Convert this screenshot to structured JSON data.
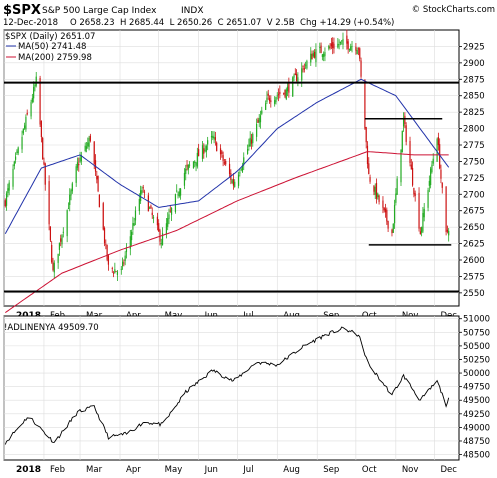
{
  "header": {
    "symbol": "$SPX",
    "name": "S&P 500 Large Cap Index",
    "exchange": "INDX",
    "date": "12-Dec-2018",
    "ohlc_text": "O 2658.23  H 2685.44  L 2650.26  C 2651.07  V 2.5B  Chg +14.29 (+0.54%)",
    "watermark": "© StockCharts.com"
  },
  "legend": {
    "price": "$SPX (Daily) 2651.07",
    "ma50": "MA(50) 2741.48",
    "ma200": "MA(200) 2759.98"
  },
  "lower_label": "!ADLINENYA 49509.70",
  "colors": {
    "up": "#22aa22",
    "down": "#cc1111",
    "ma50": "#2233aa",
    "ma200": "#cc1133",
    "grid": "#dddddd",
    "adline": "#000000"
  },
  "chart_data": [
    {
      "type": "candlestick",
      "ylim": [
        2530,
        2950
      ],
      "yticks": [
        2550,
        2575,
        2600,
        2625,
        2650,
        2675,
        2700,
        2725,
        2750,
        2775,
        2800,
        2825,
        2850,
        2875,
        2900,
        2925
      ],
      "xticks": [
        "2018",
        "Feb",
        "Mar",
        "Apr",
        "May",
        "Jun",
        "Jul",
        "Aug",
        "Sep",
        "Oct",
        "Nov",
        "Dec"
      ],
      "grid": true,
      "close_anchors": [
        [
          "2018-01-02",
          2690
        ],
        [
          "2018-01-26",
          2872
        ],
        [
          "2018-02-08",
          2581
        ],
        [
          "2018-02-27",
          2745
        ],
        [
          "2018-03-09",
          2786
        ],
        [
          "2018-03-23",
          2588
        ],
        [
          "2018-04-02",
          2582
        ],
        [
          "2018-04-18",
          2708
        ],
        [
          "2018-05-03",
          2630
        ],
        [
          "2018-05-21",
          2733
        ],
        [
          "2018-06-12",
          2786
        ],
        [
          "2018-06-28",
          2716
        ],
        [
          "2018-07-25",
          2846
        ],
        [
          "2018-08-08",
          2857
        ],
        [
          "2018-08-29",
          2914
        ],
        [
          "2018-09-20",
          2930
        ],
        [
          "2018-10-03",
          2925
        ],
        [
          "2018-10-11",
          2728
        ],
        [
          "2018-10-29",
          2641
        ],
        [
          "2018-11-07",
          2813
        ],
        [
          "2018-11-20",
          2642
        ],
        [
          "2018-12-03",
          2790
        ],
        [
          "2018-12-10",
          2637
        ],
        [
          "2018-12-12",
          2651
        ]
      ],
      "ma50_anchors": [
        [
          "2018-01-02",
          2640
        ],
        [
          "2018-01-30",
          2740
        ],
        [
          "2018-03-01",
          2760
        ],
        [
          "2018-04-01",
          2715
        ],
        [
          "2018-05-01",
          2680
        ],
        [
          "2018-06-01",
          2690
        ],
        [
          "2018-07-01",
          2735
        ],
        [
          "2018-08-01",
          2800
        ],
        [
          "2018-09-01",
          2840
        ],
        [
          "2018-10-05",
          2875
        ],
        [
          "2018-11-01",
          2850
        ],
        [
          "2018-12-12",
          2741
        ]
      ],
      "ma200_anchors": [
        [
          "2018-01-02",
          2520
        ],
        [
          "2018-02-15",
          2580
        ],
        [
          "2018-04-01",
          2615
        ],
        [
          "2018-05-15",
          2645
        ],
        [
          "2018-07-01",
          2690
        ],
        [
          "2018-08-15",
          2725
        ],
        [
          "2018-10-10",
          2765
        ],
        [
          "2018-11-15",
          2760
        ],
        [
          "2018-12-12",
          2760
        ]
      ],
      "horizontal_lines": [
        {
          "y": 2870,
          "from": "2018-01-01",
          "to": "2018-12-31",
          "width": 2
        },
        {
          "y": 2552,
          "from": "2018-01-01",
          "to": "2018-12-31",
          "width": 2
        },
        {
          "y": 2815,
          "from": "2018-10-08",
          "to": "2018-12-07",
          "width": 1.5
        },
        {
          "y": 2623,
          "from": "2018-10-11",
          "to": "2018-12-14",
          "width": 1.5
        }
      ],
      "last_close": 2651.07
    },
    {
      "type": "line",
      "series_name": "!ADLINENYA",
      "ylim": [
        48400,
        51050
      ],
      "yticks": [
        48500,
        48750,
        49000,
        49250,
        49500,
        49750,
        50000,
        50250,
        50500,
        50750,
        51000
      ],
      "xticks": [
        "2018",
        "Feb",
        "Mar",
        "Apr",
        "May",
        "Jun",
        "Jul",
        "Aug",
        "Sep",
        "Oct",
        "Nov",
        "Dec"
      ],
      "grid": true,
      "anchors": [
        [
          "2018-01-02",
          48720
        ],
        [
          "2018-01-20",
          49210
        ],
        [
          "2018-02-09",
          48720
        ],
        [
          "2018-02-27",
          49280
        ],
        [
          "2018-03-12",
          49380
        ],
        [
          "2018-03-23",
          48820
        ],
        [
          "2018-04-06",
          48880
        ],
        [
          "2018-04-20",
          49100
        ],
        [
          "2018-05-04",
          49050
        ],
        [
          "2018-05-22",
          49650
        ],
        [
          "2018-06-12",
          50050
        ],
        [
          "2018-06-28",
          49850
        ],
        [
          "2018-07-16",
          50200
        ],
        [
          "2018-08-01",
          50150
        ],
        [
          "2018-08-22",
          50500
        ],
        [
          "2018-09-07",
          50700
        ],
        [
          "2018-09-21",
          50820
        ],
        [
          "2018-10-03",
          50700
        ],
        [
          "2018-10-11",
          50150
        ],
        [
          "2018-10-29",
          49600
        ],
        [
          "2018-11-07",
          49950
        ],
        [
          "2018-11-20",
          49500
        ],
        [
          "2018-12-03",
          49850
        ],
        [
          "2018-12-10",
          49420
        ],
        [
          "2018-12-12",
          49510
        ]
      ]
    }
  ]
}
